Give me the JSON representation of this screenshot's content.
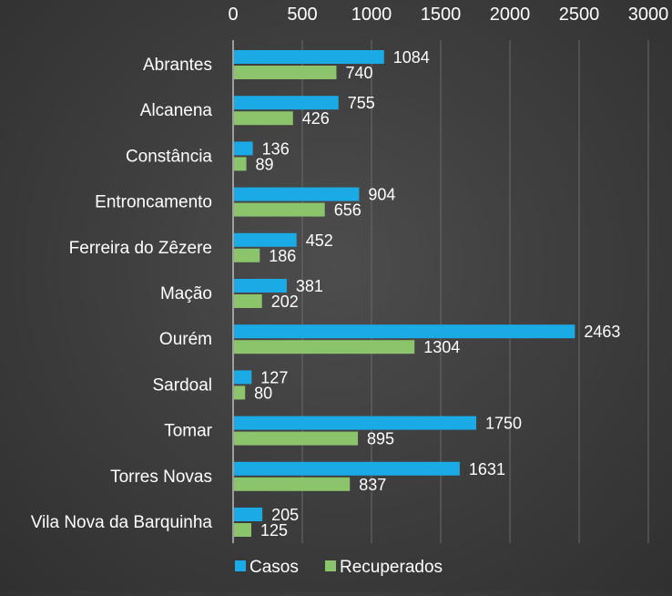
{
  "chart_data": {
    "type": "bar",
    "orientation": "horizontal",
    "categories": [
      "Abrantes",
      "Alcanena",
      "Constância",
      "Entroncamento",
      "Ferreira do Zêzere",
      "Mação",
      "Ourém",
      "Sardoal",
      "Tomar",
      "Torres Novas",
      "Vila Nova da Barquinha"
    ],
    "series": [
      {
        "name": "Casos",
        "color": "#1aaae6",
        "values": [
          1084,
          755,
          136,
          904,
          452,
          381,
          2463,
          127,
          1750,
          1631,
          205
        ]
      },
      {
        "name": "Recuperados",
        "color": "#8cc46b",
        "values": [
          740,
          426,
          89,
          656,
          186,
          202,
          1304,
          80,
          895,
          837,
          125
        ]
      }
    ],
    "xlim": [
      0,
      3000
    ],
    "xticks": [
      "0",
      "500",
      "1000",
      "1500",
      "2000",
      "2500",
      "3000"
    ],
    "x_axis_position": "top",
    "grid": "vertical",
    "legend": {
      "position": "bottom",
      "labels": [
        "Casos",
        "Recuperados"
      ]
    },
    "title": "",
    "xlabel": "",
    "ylabel": ""
  }
}
